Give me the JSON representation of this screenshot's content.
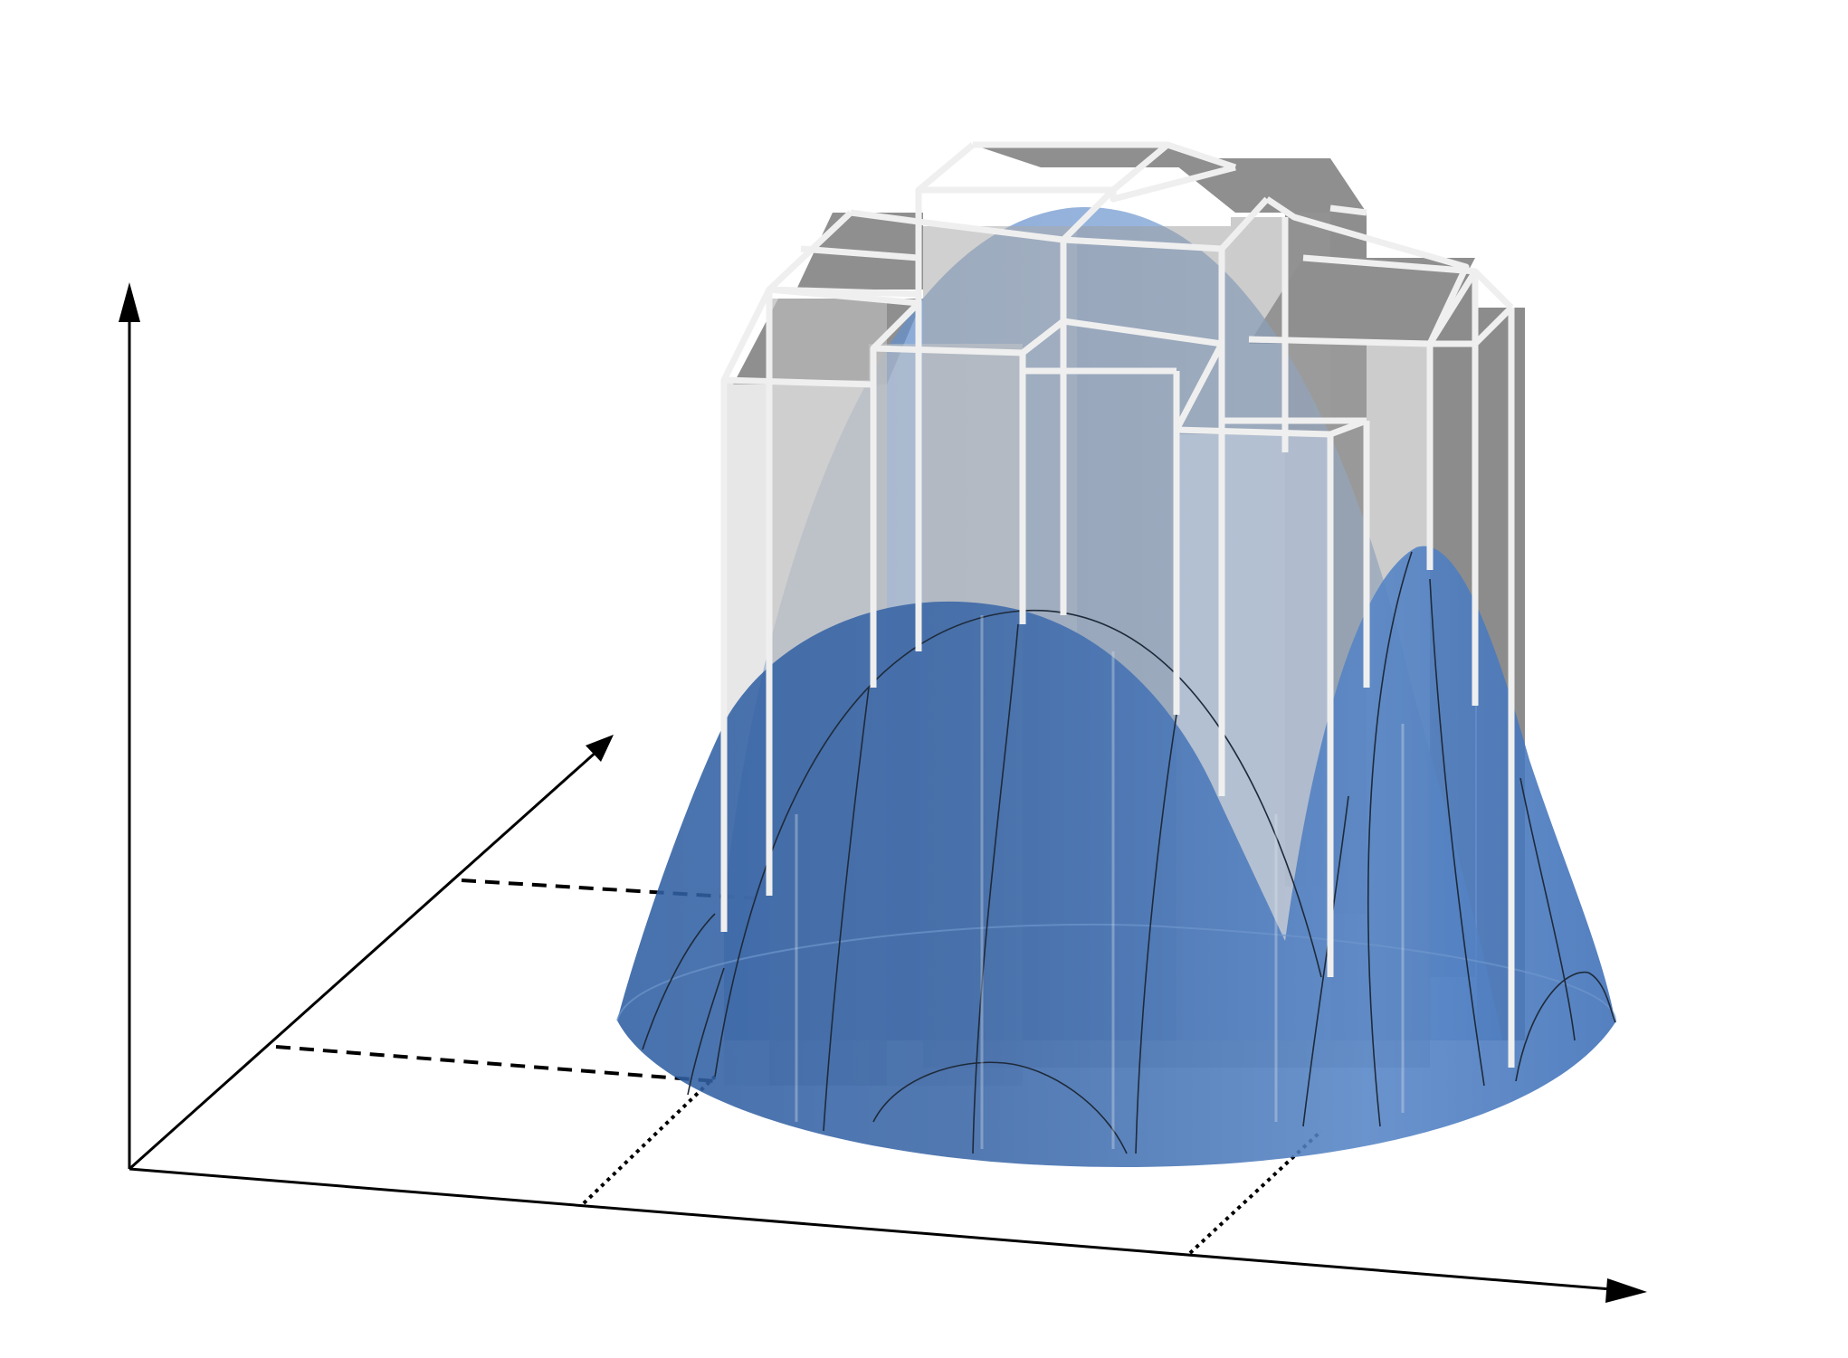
{
  "figure": {
    "kind": "3D surface approximated by rectangular columns (Riemann sum over a disk region)",
    "axes": {
      "vertical": "up-arrow",
      "depth": "diagonal-arrow",
      "horizontal": "right-arrow"
    },
    "surface": {
      "color": "#4f7fc0",
      "shape": "dome"
    },
    "columns": {
      "face_color": "#8c8c8c",
      "edge_color": "#f2f2f2"
    },
    "guides": {
      "depth_ticks": "dashed",
      "width_ticks": "dotted"
    }
  }
}
